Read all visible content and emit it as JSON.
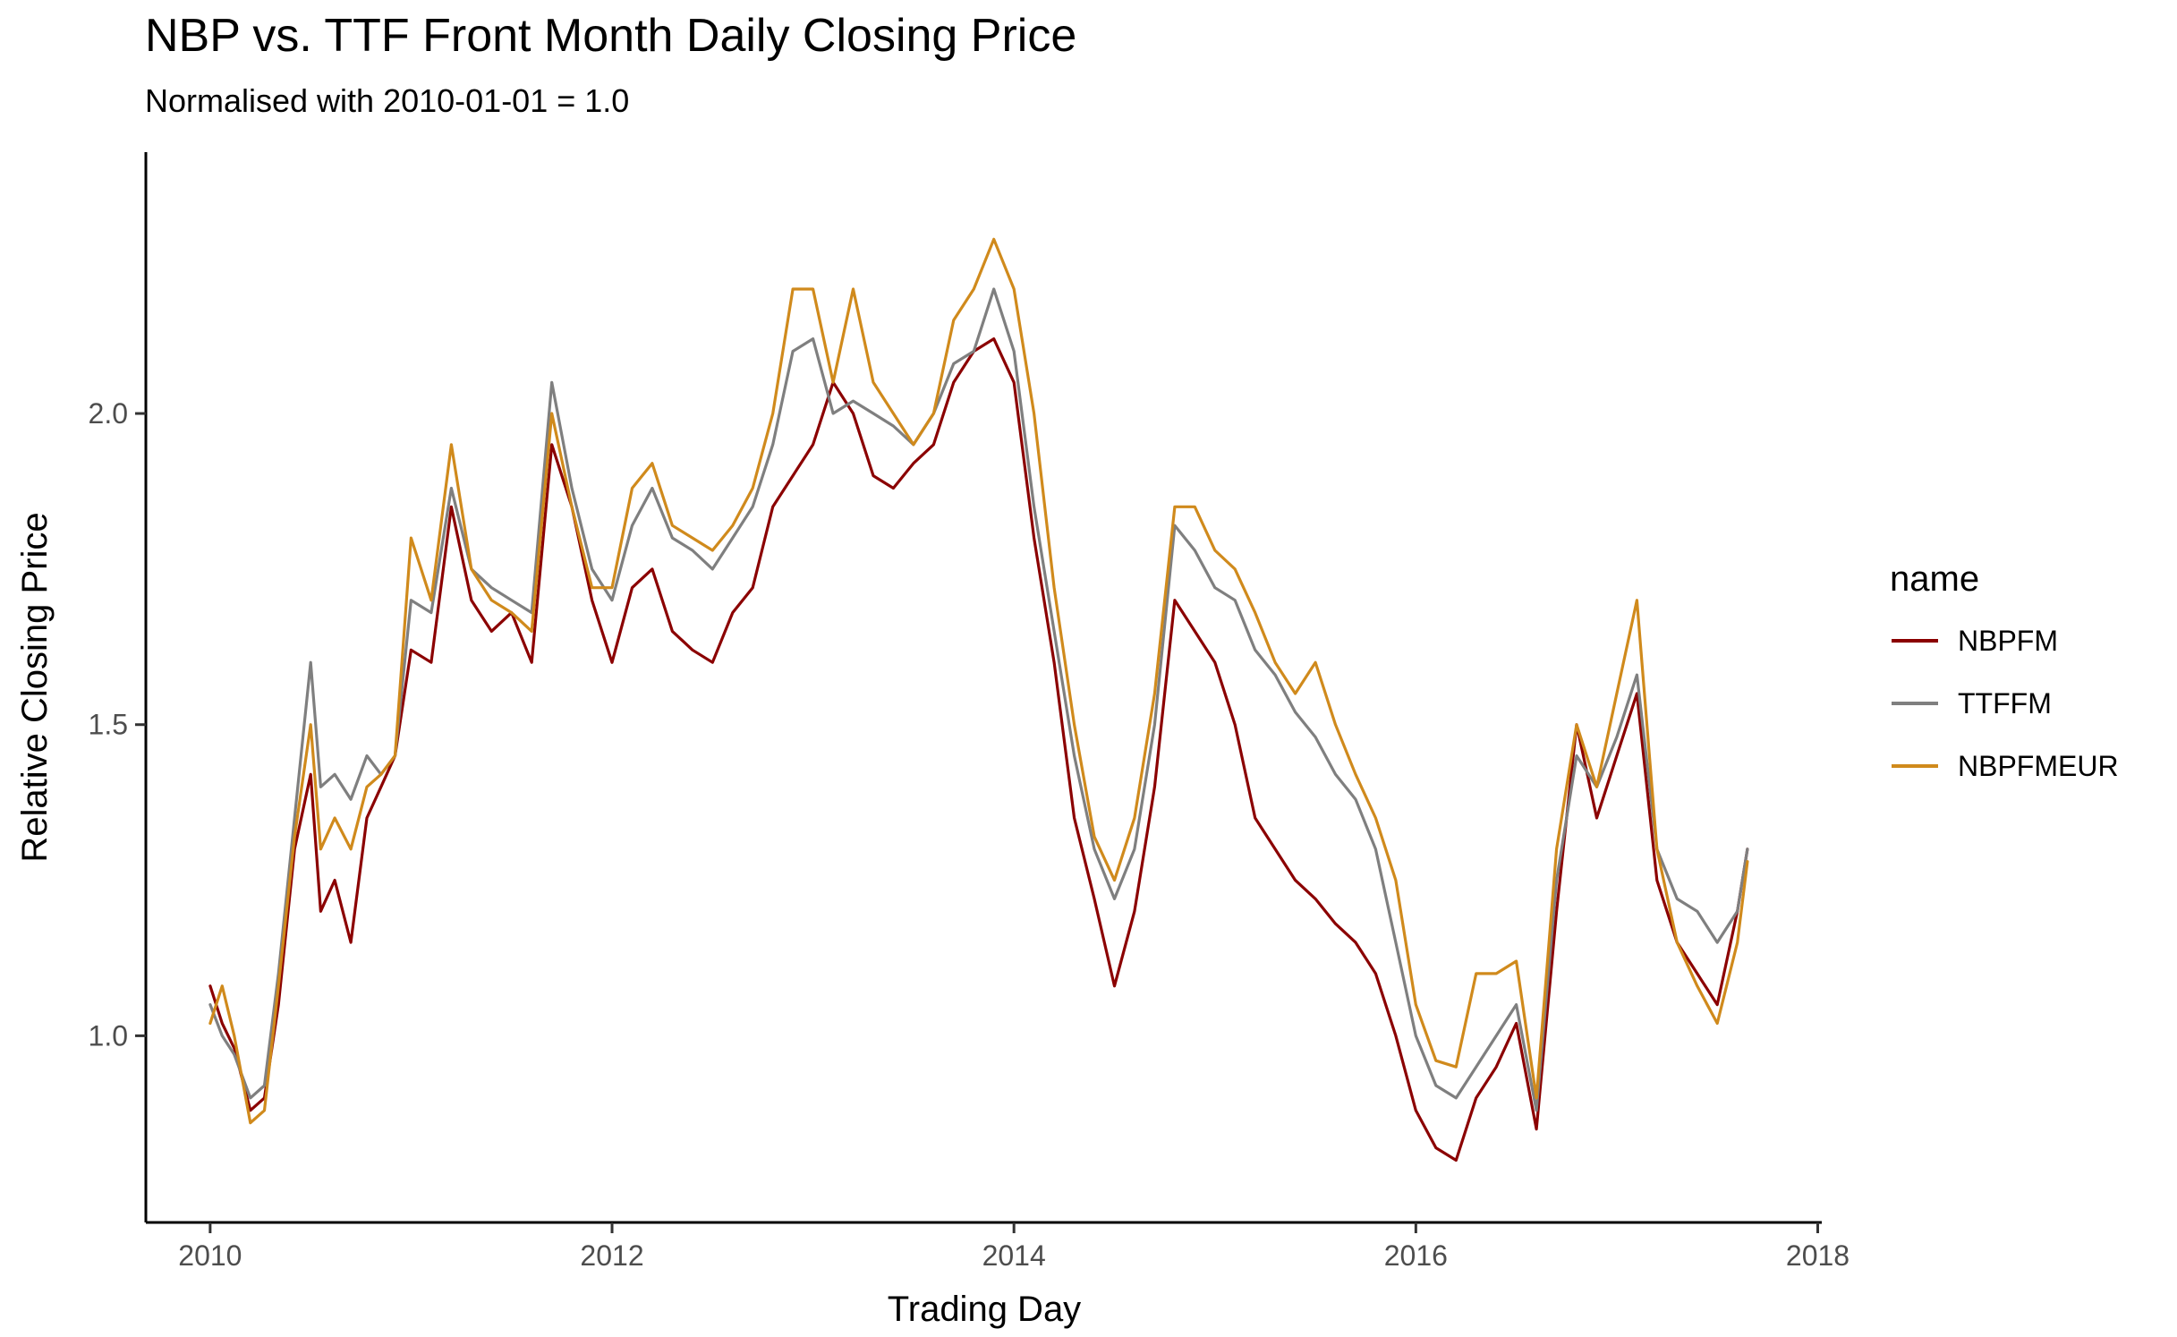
{
  "chart_data": {
    "type": "line",
    "title": "NBP vs. TTF Front Month Daily Closing Price",
    "subtitle": "Normalised with 2010-01-01 = 1.0",
    "xlabel": "Trading Day",
    "ylabel": "Relative Closing Price",
    "x_ticks": [
      "2010",
      "2012",
      "2014",
      "2016",
      "2018"
    ],
    "y_ticks": [
      "1.0",
      "1.5",
      "2.0"
    ],
    "xlim": [
      2009.68,
      2018.02
    ],
    "ylim": [
      0.7,
      2.42
    ],
    "grid": false,
    "legend": {
      "title": "name",
      "position": "right",
      "entries": [
        "NBPFM",
        "TTFFM",
        "NBPFMEUR"
      ]
    },
    "series": [
      {
        "name": "NBPFM",
        "color": "#8B0000",
        "x": [
          2010.0,
          2010.06,
          2010.12,
          2010.2,
          2010.27,
          2010.34,
          2010.42,
          2010.5,
          2010.55,
          2010.62,
          2010.7,
          2010.78,
          2010.85,
          2010.92,
          2011.0,
          2011.1,
          2011.2,
          2011.3,
          2011.4,
          2011.5,
          2011.6,
          2011.7,
          2011.8,
          2011.9,
          2012.0,
          2012.1,
          2012.2,
          2012.3,
          2012.4,
          2012.5,
          2012.6,
          2012.7,
          2012.8,
          2012.9,
          2013.0,
          2013.1,
          2013.2,
          2013.3,
          2013.4,
          2013.5,
          2013.6,
          2013.7,
          2013.8,
          2013.9,
          2014.0,
          2014.1,
          2014.2,
          2014.3,
          2014.4,
          2014.5,
          2014.6,
          2014.7,
          2014.8,
          2014.9,
          2015.0,
          2015.1,
          2015.2,
          2015.3,
          2015.4,
          2015.5,
          2015.6,
          2015.7,
          2015.8,
          2015.9,
          2016.0,
          2016.1,
          2016.2,
          2016.3,
          2016.4,
          2016.5,
          2016.6,
          2016.7,
          2016.8,
          2016.9,
          2017.0,
          2017.1,
          2017.2,
          2017.3,
          2017.4,
          2017.5,
          2017.6,
          2017.65
        ],
        "values": [
          1.08,
          1.02,
          0.98,
          0.88,
          0.9,
          1.05,
          1.3,
          1.42,
          1.2,
          1.25,
          1.15,
          1.35,
          1.4,
          1.45,
          1.62,
          1.6,
          1.85,
          1.7,
          1.65,
          1.68,
          1.6,
          1.95,
          1.85,
          1.7,
          1.6,
          1.72,
          1.75,
          1.65,
          1.62,
          1.6,
          1.68,
          1.72,
          1.85,
          1.9,
          1.95,
          2.05,
          2.0,
          1.9,
          1.88,
          1.92,
          1.95,
          2.05,
          2.1,
          2.12,
          2.05,
          1.8,
          1.6,
          1.35,
          1.22,
          1.08,
          1.2,
          1.4,
          1.7,
          1.65,
          1.6,
          1.5,
          1.35,
          1.3,
          1.25,
          1.22,
          1.18,
          1.15,
          1.1,
          1.0,
          0.88,
          0.82,
          0.8,
          0.9,
          0.95,
          1.02,
          0.85,
          1.2,
          1.5,
          1.35,
          1.45,
          1.55,
          1.25,
          1.15,
          1.1,
          1.05,
          1.2,
          1.3
        ]
      },
      {
        "name": "TTFFM",
        "color": "#7F7F7F",
        "x": [
          2010.0,
          2010.06,
          2010.12,
          2010.2,
          2010.27,
          2010.34,
          2010.42,
          2010.5,
          2010.55,
          2010.62,
          2010.7,
          2010.78,
          2010.85,
          2010.92,
          2011.0,
          2011.1,
          2011.2,
          2011.3,
          2011.4,
          2011.5,
          2011.6,
          2011.7,
          2011.8,
          2011.9,
          2012.0,
          2012.1,
          2012.2,
          2012.3,
          2012.4,
          2012.5,
          2012.6,
          2012.7,
          2012.8,
          2012.9,
          2013.0,
          2013.1,
          2013.2,
          2013.3,
          2013.4,
          2013.5,
          2013.6,
          2013.7,
          2013.8,
          2013.9,
          2014.0,
          2014.1,
          2014.2,
          2014.3,
          2014.4,
          2014.5,
          2014.6,
          2014.7,
          2014.8,
          2014.9,
          2015.0,
          2015.1,
          2015.2,
          2015.3,
          2015.4,
          2015.5,
          2015.6,
          2015.7,
          2015.8,
          2015.9,
          2016.0,
          2016.1,
          2016.2,
          2016.3,
          2016.4,
          2016.5,
          2016.6,
          2016.7,
          2016.8,
          2016.9,
          2017.0,
          2017.1,
          2017.2,
          2017.3,
          2017.4,
          2017.5,
          2017.6,
          2017.65
        ],
        "values": [
          1.05,
          1.0,
          0.97,
          0.9,
          0.92,
          1.1,
          1.35,
          1.6,
          1.4,
          1.42,
          1.38,
          1.45,
          1.42,
          1.45,
          1.7,
          1.68,
          1.88,
          1.75,
          1.72,
          1.7,
          1.68,
          2.05,
          1.88,
          1.75,
          1.7,
          1.82,
          1.88,
          1.8,
          1.78,
          1.75,
          1.8,
          1.85,
          1.95,
          2.1,
          2.12,
          2.0,
          2.02,
          2.0,
          1.98,
          1.95,
          2.0,
          2.08,
          2.1,
          2.2,
          2.1,
          1.85,
          1.65,
          1.45,
          1.3,
          1.22,
          1.3,
          1.5,
          1.82,
          1.78,
          1.72,
          1.7,
          1.62,
          1.58,
          1.52,
          1.48,
          1.42,
          1.38,
          1.3,
          1.15,
          1.0,
          0.92,
          0.9,
          0.95,
          1.0,
          1.05,
          0.88,
          1.25,
          1.45,
          1.4,
          1.48,
          1.58,
          1.3,
          1.22,
          1.2,
          1.15,
          1.2,
          1.3
        ]
      },
      {
        "name": "NBPFMEUR",
        "color": "#D08A1C",
        "x": [
          2010.0,
          2010.06,
          2010.12,
          2010.2,
          2010.27,
          2010.34,
          2010.42,
          2010.5,
          2010.55,
          2010.62,
          2010.7,
          2010.78,
          2010.85,
          2010.92,
          2011.0,
          2011.1,
          2011.2,
          2011.3,
          2011.4,
          2011.5,
          2011.6,
          2011.7,
          2011.8,
          2011.9,
          2012.0,
          2012.1,
          2012.2,
          2012.3,
          2012.4,
          2012.5,
          2012.6,
          2012.7,
          2012.8,
          2012.9,
          2013.0,
          2013.1,
          2013.2,
          2013.3,
          2013.4,
          2013.5,
          2013.6,
          2013.7,
          2013.8,
          2013.9,
          2014.0,
          2014.1,
          2014.2,
          2014.3,
          2014.4,
          2014.5,
          2014.6,
          2014.7,
          2014.8,
          2014.9,
          2015.0,
          2015.1,
          2015.2,
          2015.3,
          2015.4,
          2015.5,
          2015.6,
          2015.7,
          2015.8,
          2015.9,
          2016.0,
          2016.1,
          2016.2,
          2016.3,
          2016.4,
          2016.5,
          2016.6,
          2016.7,
          2016.8,
          2016.9,
          2017.0,
          2017.1,
          2017.2,
          2017.3,
          2017.4,
          2017.5,
          2017.6,
          2017.65
        ],
        "values": [
          1.02,
          1.08,
          1.0,
          0.86,
          0.88,
          1.08,
          1.32,
          1.5,
          1.3,
          1.35,
          1.3,
          1.4,
          1.42,
          1.45,
          1.8,
          1.7,
          1.95,
          1.75,
          1.7,
          1.68,
          1.65,
          2.0,
          1.85,
          1.72,
          1.72,
          1.88,
          1.92,
          1.82,
          1.8,
          1.78,
          1.82,
          1.88,
          2.0,
          2.2,
          2.2,
          2.05,
          2.2,
          2.05,
          2.0,
          1.95,
          2.0,
          2.15,
          2.2,
          2.28,
          2.2,
          2.0,
          1.72,
          1.5,
          1.32,
          1.25,
          1.35,
          1.55,
          1.85,
          1.85,
          1.78,
          1.75,
          1.68,
          1.6,
          1.55,
          1.6,
          1.5,
          1.42,
          1.35,
          1.25,
          1.05,
          0.96,
          0.95,
          1.1,
          1.1,
          1.12,
          0.9,
          1.3,
          1.5,
          1.4,
          1.55,
          1.7,
          1.3,
          1.15,
          1.08,
          1.02,
          1.15,
          1.28
        ]
      }
    ]
  }
}
